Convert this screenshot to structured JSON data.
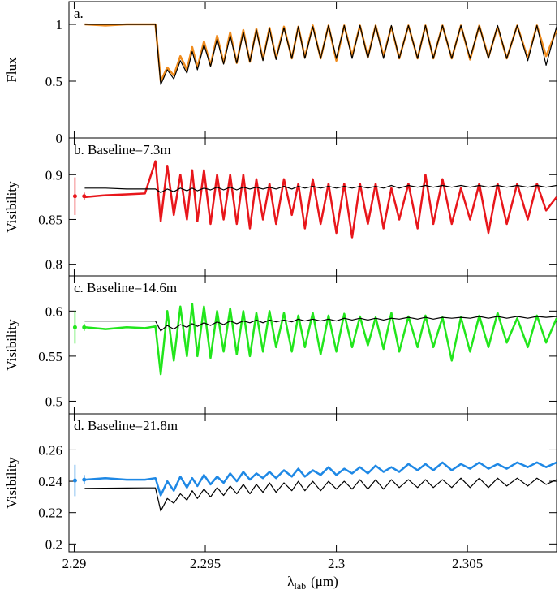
{
  "chart_data": [
    {
      "type": "line",
      "panel_label": "a.",
      "ylabel": "Flux",
      "x": [
        2.2904,
        2.2912,
        2.292,
        2.2927,
        2.2931,
        2.2933,
        2.29355,
        2.2938,
        2.29405,
        2.2943,
        2.2945,
        2.2947,
        2.29495,
        2.2952,
        2.29545,
        2.2957,
        2.29595,
        2.2962,
        2.29645,
        2.2967,
        2.29695,
        2.2972,
        2.29745,
        2.2977,
        2.298,
        2.2983,
        2.29855,
        2.2988,
        2.2991,
        2.2994,
        2.2997,
        2.3,
        2.3003,
        2.3006,
        2.3009,
        2.3012,
        2.3015,
        2.3018,
        2.3021,
        2.3024,
        2.30275,
        2.3031,
        2.3034,
        2.3037,
        2.30405,
        2.3044,
        2.30475,
        2.3051,
        2.30545,
        2.3058,
        2.30615,
        2.3065,
        2.3069,
        2.3073,
        2.30765,
        2.308,
        2.3084
      ],
      "series": [
        {
          "color": "#f08c1e",
          "values": [
            1.0,
            0.99,
            1.0,
            1.0,
            1.0,
            0.5,
            0.62,
            0.55,
            0.72,
            0.6,
            0.8,
            0.62,
            0.85,
            0.64,
            0.9,
            0.66,
            0.93,
            0.66,
            0.95,
            0.67,
            0.96,
            0.69,
            0.97,
            0.7,
            0.98,
            0.7,
            0.98,
            0.71,
            0.99,
            0.7,
            0.99,
            0.68,
            0.99,
            0.72,
            0.99,
            0.71,
            0.99,
            0.72,
            0.98,
            0.7,
            0.99,
            0.7,
            0.99,
            0.7,
            0.99,
            0.7,
            0.99,
            0.69,
            0.99,
            0.71,
            0.98,
            0.7,
            0.99,
            0.7,
            0.99,
            0.72,
            0.95
          ]
        },
        {
          "color": "#000000",
          "values": [
            1.0,
            1.0,
            1.0,
            1.0,
            1.0,
            0.47,
            0.6,
            0.52,
            0.68,
            0.57,
            0.76,
            0.6,
            0.82,
            0.63,
            0.87,
            0.65,
            0.9,
            0.66,
            0.93,
            0.67,
            0.95,
            0.68,
            0.96,
            0.69,
            0.97,
            0.7,
            0.98,
            0.7,
            0.98,
            0.7,
            0.99,
            0.7,
            0.99,
            0.7,
            0.99,
            0.7,
            0.99,
            0.7,
            0.99,
            0.7,
            0.99,
            0.7,
            0.99,
            0.7,
            0.99,
            0.7,
            0.99,
            0.7,
            0.99,
            0.7,
            0.99,
            0.7,
            0.99,
            0.68,
            0.99,
            0.64,
            0.98
          ]
        }
      ],
      "xlim": [
        2.2898,
        2.3084
      ],
      "xticks": [
        2.29,
        2.295,
        2.3,
        2.305
      ],
      "ylim": [
        0,
        1.2
      ],
      "yticks": [
        0,
        0.5,
        1
      ]
    },
    {
      "type": "line",
      "panel_label": "b. Baseline=7.3m",
      "ylabel": "Visibility",
      "x": [
        2.2904,
        2.2912,
        2.292,
        2.2927,
        2.2931,
        2.2933,
        2.29355,
        2.2938,
        2.29405,
        2.2943,
        2.2945,
        2.2947,
        2.29495,
        2.2952,
        2.29545,
        2.2957,
        2.29595,
        2.2962,
        2.29645,
        2.2967,
        2.29695,
        2.2972,
        2.29745,
        2.2977,
        2.298,
        2.2983,
        2.29855,
        2.2988,
        2.2991,
        2.2994,
        2.2997,
        2.3,
        2.3003,
        2.3006,
        2.3009,
        2.3012,
        2.3015,
        2.3018,
        2.3021,
        2.3024,
        2.30275,
        2.3031,
        2.3034,
        2.3037,
        2.30405,
        2.3044,
        2.30475,
        2.3051,
        2.30545,
        2.3058,
        2.30615,
        2.3065,
        2.3069,
        2.3073,
        2.30765,
        2.308,
        2.3084
      ],
      "series": [
        {
          "color": "#e8161b",
          "values": [
            0.875,
            0.877,
            0.878,
            0.879,
            0.915,
            0.848,
            0.91,
            0.855,
            0.9,
            0.85,
            0.905,
            0.848,
            0.905,
            0.845,
            0.9,
            0.85,
            0.9,
            0.845,
            0.9,
            0.84,
            0.895,
            0.85,
            0.89,
            0.845,
            0.895,
            0.855,
            0.89,
            0.84,
            0.895,
            0.845,
            0.89,
            0.835,
            0.89,
            0.83,
            0.89,
            0.845,
            0.89,
            0.84,
            0.885,
            0.85,
            0.89,
            0.84,
            0.9,
            0.845,
            0.895,
            0.845,
            0.885,
            0.85,
            0.89,
            0.835,
            0.89,
            0.845,
            0.89,
            0.85,
            0.89,
            0.86,
            0.875
          ]
        },
        {
          "color": "#000000",
          "values": [
            0.885,
            0.885,
            0.884,
            0.884,
            0.884,
            0.88,
            0.884,
            0.881,
            0.885,
            0.882,
            0.885,
            0.882,
            0.885,
            0.883,
            0.886,
            0.883,
            0.886,
            0.883,
            0.886,
            0.884,
            0.886,
            0.884,
            0.886,
            0.884,
            0.887,
            0.884,
            0.887,
            0.885,
            0.887,
            0.885,
            0.887,
            0.885,
            0.887,
            0.885,
            0.887,
            0.885,
            0.887,
            0.885,
            0.888,
            0.885,
            0.888,
            0.886,
            0.888,
            0.886,
            0.888,
            0.886,
            0.888,
            0.886,
            0.888,
            0.886,
            0.888,
            0.886,
            0.888,
            0.886,
            0.888,
            0.886,
            0.888
          ]
        }
      ],
      "errorbars": {
        "color": "#e8161b",
        "x": [
          2.29003,
          2.29038
        ],
        "values": [
          0.876,
          0.876
        ],
        "errors": [
          0.021,
          0.004
        ]
      },
      "xlim": [
        2.2898,
        2.3084
      ],
      "xticks": [
        2.29,
        2.295,
        2.3,
        2.305
      ],
      "ylim": [
        0.787,
        0.941
      ],
      "yticks": [
        0.8,
        0.85,
        0.9
      ]
    },
    {
      "type": "line",
      "panel_label": "c. Baseline=14.6m",
      "ylabel": "Visibility",
      "x": [
        2.2904,
        2.2912,
        2.292,
        2.2927,
        2.2931,
        2.2933,
        2.29355,
        2.2938,
        2.29405,
        2.2943,
        2.2945,
        2.2947,
        2.29495,
        2.2952,
        2.29545,
        2.2957,
        2.29595,
        2.2962,
        2.29645,
        2.2967,
        2.29695,
        2.2972,
        2.29745,
        2.2977,
        2.298,
        2.2983,
        2.29855,
        2.2988,
        2.2991,
        2.2994,
        2.2997,
        2.3,
        2.3003,
        2.3006,
        2.3009,
        2.3012,
        2.3015,
        2.3018,
        2.3021,
        2.3024,
        2.30275,
        2.3031,
        2.3034,
        2.3037,
        2.30405,
        2.3044,
        2.30475,
        2.3051,
        2.30545,
        2.3058,
        2.30615,
        2.3065,
        2.3069,
        2.3073,
        2.30765,
        2.308,
        2.3084
      ],
      "series": [
        {
          "color": "#22e61c",
          "values": [
            0.582,
            0.58,
            0.582,
            0.581,
            0.583,
            0.53,
            0.6,
            0.545,
            0.605,
            0.55,
            0.608,
            0.55,
            0.605,
            0.548,
            0.6,
            0.555,
            0.603,
            0.552,
            0.6,
            0.55,
            0.598,
            0.555,
            0.6,
            0.56,
            0.598,
            0.555,
            0.595,
            0.56,
            0.598,
            0.552,
            0.595,
            0.555,
            0.597,
            0.56,
            0.594,
            0.562,
            0.593,
            0.558,
            0.598,
            0.555,
            0.594,
            0.56,
            0.595,
            0.56,
            0.593,
            0.545,
            0.593,
            0.555,
            0.595,
            0.56,
            0.598,
            0.565,
            0.592,
            0.56,
            0.595,
            0.565,
            0.592
          ]
        },
        {
          "color": "#000000",
          "values": [
            0.589,
            0.589,
            0.589,
            0.589,
            0.589,
            0.578,
            0.584,
            0.58,
            0.585,
            0.582,
            0.586,
            0.583,
            0.587,
            0.584,
            0.588,
            0.585,
            0.589,
            0.586,
            0.589,
            0.587,
            0.59,
            0.587,
            0.59,
            0.588,
            0.59,
            0.588,
            0.591,
            0.589,
            0.591,
            0.589,
            0.591,
            0.589,
            0.592,
            0.59,
            0.592,
            0.59,
            0.592,
            0.59,
            0.592,
            0.591,
            0.593,
            0.591,
            0.593,
            0.591,
            0.593,
            0.592,
            0.593,
            0.592,
            0.594,
            0.592,
            0.594,
            0.592,
            0.594,
            0.592,
            0.594,
            0.593,
            0.594
          ]
        }
      ],
      "errorbars": {
        "color": "#22e61c",
        "x": [
          2.29003,
          2.29038
        ],
        "values": [
          0.582,
          0.582
        ],
        "errors": [
          0.018,
          0.004
        ]
      },
      "xlim": [
        2.2898,
        2.3084
      ],
      "xticks": [
        2.29,
        2.295,
        2.3,
        2.305
      ],
      "ylim": [
        0.486,
        0.639
      ],
      "yticks": [
        0.5,
        0.55,
        0.6
      ]
    },
    {
      "type": "line",
      "panel_label": "d. Baseline=21.8m",
      "ylabel": "Visibility",
      "xlabel": "λ",
      "xlabel_sub": "lab",
      "xlabel_unit": "(μm)",
      "x": [
        2.2904,
        2.2912,
        2.292,
        2.2927,
        2.2931,
        2.2933,
        2.29355,
        2.2938,
        2.29405,
        2.2943,
        2.2945,
        2.2947,
        2.29495,
        2.2952,
        2.29545,
        2.2957,
        2.29595,
        2.2962,
        2.29645,
        2.2967,
        2.29695,
        2.2972,
        2.29745,
        2.2977,
        2.298,
        2.2983,
        2.29855,
        2.2988,
        2.2991,
        2.2994,
        2.2997,
        2.3,
        2.3003,
        2.3006,
        2.3009,
        2.3012,
        2.3015,
        2.3018,
        2.3021,
        2.3024,
        2.30275,
        2.3031,
        2.3034,
        2.3037,
        2.30405,
        2.3044,
        2.30475,
        2.3051,
        2.30545,
        2.3058,
        2.30615,
        2.3065,
        2.3069,
        2.3073,
        2.30765,
        2.308,
        2.3084
      ],
      "series": [
        {
          "color": "#1e88e5",
          "values": [
            0.241,
            0.242,
            0.241,
            0.241,
            0.242,
            0.231,
            0.24,
            0.234,
            0.243,
            0.236,
            0.242,
            0.237,
            0.244,
            0.238,
            0.243,
            0.239,
            0.245,
            0.24,
            0.246,
            0.241,
            0.245,
            0.242,
            0.246,
            0.242,
            0.247,
            0.243,
            0.248,
            0.243,
            0.247,
            0.244,
            0.249,
            0.244,
            0.248,
            0.245,
            0.249,
            0.245,
            0.25,
            0.246,
            0.249,
            0.246,
            0.251,
            0.247,
            0.251,
            0.247,
            0.252,
            0.247,
            0.251,
            0.248,
            0.252,
            0.248,
            0.251,
            0.248,
            0.252,
            0.249,
            0.252,
            0.249,
            0.252
          ]
        },
        {
          "color": "#000000",
          "values": [
            0.2355,
            0.2356,
            0.2357,
            0.2358,
            0.2358,
            0.221,
            0.229,
            0.226,
            0.232,
            0.228,
            0.234,
            0.229,
            0.235,
            0.23,
            0.236,
            0.231,
            0.237,
            0.232,
            0.238,
            0.232,
            0.238,
            0.233,
            0.239,
            0.233,
            0.239,
            0.234,
            0.24,
            0.234,
            0.24,
            0.234,
            0.24,
            0.235,
            0.24,
            0.235,
            0.241,
            0.235,
            0.241,
            0.235,
            0.241,
            0.236,
            0.241,
            0.236,
            0.241,
            0.236,
            0.241,
            0.236,
            0.242,
            0.236,
            0.242,
            0.236,
            0.242,
            0.237,
            0.242,
            0.237,
            0.242,
            0.238,
            0.241
          ]
        }
      ],
      "errorbars": {
        "color": "#1e88e5",
        "x": [
          2.29003,
          2.29038
        ],
        "values": [
          0.2405,
          0.241
        ],
        "errors": [
          0.01,
          0.003
        ]
      },
      "xlim": [
        2.2898,
        2.3084
      ],
      "xticks": [
        2.29,
        2.295,
        2.3,
        2.305
      ],
      "ylim": [
        0.195,
        0.283
      ],
      "yticks": [
        0.2,
        0.22,
        0.24,
        0.26
      ]
    }
  ]
}
